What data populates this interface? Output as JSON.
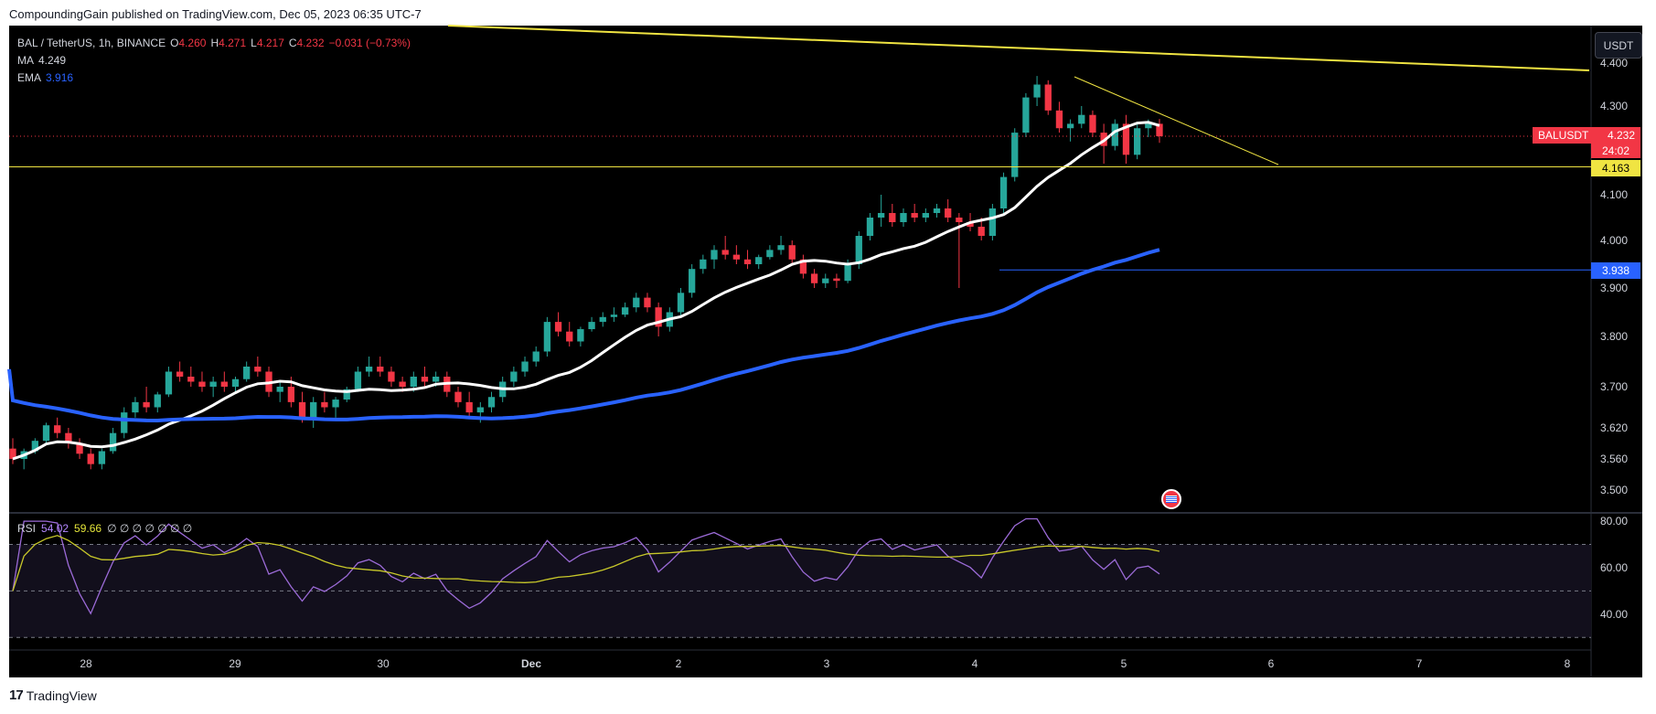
{
  "header_text": "CompoundingGain published on TradingView.com, Dec 05, 2023 06:35 UTC-7",
  "footer_brand": "TradingView",
  "currency_button": "USDT",
  "legend": {
    "symbol": "BAL / TetherUS, 1h, BINANCE",
    "open_label": "O",
    "open": "4.260",
    "high_label": "H",
    "high": "4.271",
    "low_label": "L",
    "low": "4.217",
    "close_label": "C",
    "close": "4.232",
    "change": "−0.031 (−0.73%)",
    "ma_label": "MA",
    "ma_value": "4.249",
    "ema_label": "EMA",
    "ema_value": "3.916"
  },
  "rsi_legend": {
    "label": "RSI",
    "value": "54.02",
    "ma_value": "59.66",
    "extras": "∅ ∅ ∅ ∅ ∅ ∅ ∅"
  },
  "price_tags": {
    "symbol": "BALUSDT",
    "last": "4.232",
    "countdown": "24:02",
    "support": "4.163",
    "level": "3.938"
  },
  "colors": {
    "background": "#000000",
    "up": "#26a69a",
    "down": "#f23645",
    "ma_line": "#ffffff",
    "ema_line": "#2962ff",
    "trend_line": "#f0e442",
    "rsi_line": "#9c6bd8",
    "rsi_ma": "#c9c92a",
    "level_line": "#2962ff"
  },
  "chart_data": [
    {
      "type": "candlestick",
      "title": "BAL / TetherUS, 1h, BINANCE",
      "x_ticks": [
        "28",
        "29",
        "30",
        "Dec",
        "2",
        "3",
        "4",
        "5",
        "6",
        "7",
        "8"
      ],
      "y_ticks": [
        "3.500",
        "3.560",
        "3.620",
        "3.700",
        "3.800",
        "3.900",
        "4.000",
        "4.100",
        "4.300",
        "4.400"
      ],
      "y_scale": "log",
      "ylim": [
        3.47,
        4.42
      ],
      "series": [
        {
          "name": "MA",
          "values_note": "moving average",
          "last": 4.249
        },
        {
          "name": "EMA",
          "last": 3.916
        }
      ],
      "horizontal_levels": [
        4.163,
        3.938
      ],
      "trend_lines": [
        {
          "from": [
            "Nov 27",
            4.46
          ],
          "to": [
            "Dec 8",
            4.37
          ]
        },
        {
          "from": [
            "Dec 4 16:00",
            4.37
          ],
          "to": [
            "Dec 6 01:00",
            4.15
          ]
        }
      ],
      "last_price": 4.232,
      "candles_ohlc": [
        [
          3.58,
          3.6,
          3.55,
          3.56
        ],
        [
          3.56,
          3.58,
          3.54,
          3.575
        ],
        [
          3.575,
          3.6,
          3.57,
          3.595
        ],
        [
          3.595,
          3.63,
          3.59,
          3.625
        ],
        [
          3.625,
          3.64,
          3.6,
          3.61
        ],
        [
          3.61,
          3.62,
          3.58,
          3.59
        ],
        [
          3.59,
          3.6,
          3.56,
          3.57
        ],
        [
          3.57,
          3.58,
          3.54,
          3.55
        ],
        [
          3.55,
          3.58,
          3.54,
          3.575
        ],
        [
          3.575,
          3.62,
          3.57,
          3.61
        ],
        [
          3.61,
          3.66,
          3.6,
          3.65
        ],
        [
          3.65,
          3.68,
          3.64,
          3.67
        ],
        [
          3.67,
          3.7,
          3.65,
          3.66
        ],
        [
          3.66,
          3.69,
          3.65,
          3.685
        ],
        [
          3.685,
          3.74,
          3.68,
          3.73
        ],
        [
          3.73,
          3.75,
          3.71,
          3.72
        ],
        [
          3.72,
          3.74,
          3.7,
          3.71
        ],
        [
          3.71,
          3.73,
          3.69,
          3.7
        ],
        [
          3.7,
          3.72,
          3.68,
          3.71
        ],
        [
          3.71,
          3.73,
          3.69,
          3.7
        ],
        [
          3.7,
          3.72,
          3.69,
          3.715
        ],
        [
          3.715,
          3.75,
          3.71,
          3.74
        ],
        [
          3.74,
          3.76,
          3.72,
          3.73
        ],
        [
          3.73,
          3.74,
          3.68,
          3.69
        ],
        [
          3.69,
          3.71,
          3.67,
          3.7
        ],
        [
          3.7,
          3.72,
          3.66,
          3.67
        ],
        [
          3.67,
          3.69,
          3.63,
          3.64
        ],
        [
          3.64,
          3.68,
          3.62,
          3.67
        ],
        [
          3.67,
          3.69,
          3.65,
          3.66
        ],
        [
          3.66,
          3.68,
          3.64,
          3.675
        ],
        [
          3.675,
          3.7,
          3.67,
          3.695
        ],
        [
          3.695,
          3.74,
          3.69,
          3.73
        ],
        [
          3.73,
          3.76,
          3.72,
          3.74
        ],
        [
          3.74,
          3.76,
          3.72,
          3.73
        ],
        [
          3.73,
          3.74,
          3.7,
          3.71
        ],
        [
          3.71,
          3.72,
          3.69,
          3.7
        ],
        [
          3.7,
          3.73,
          3.69,
          3.72
        ],
        [
          3.72,
          3.74,
          3.7,
          3.71
        ],
        [
          3.71,
          3.73,
          3.7,
          3.72
        ],
        [
          3.72,
          3.73,
          3.68,
          3.69
        ],
        [
          3.69,
          3.7,
          3.66,
          3.67
        ],
        [
          3.67,
          3.69,
          3.64,
          3.65
        ],
        [
          3.65,
          3.67,
          3.63,
          3.66
        ],
        [
          3.66,
          3.69,
          3.65,
          3.68
        ],
        [
          3.68,
          3.72,
          3.67,
          3.71
        ],
        [
          3.71,
          3.74,
          3.7,
          3.73
        ],
        [
          3.73,
          3.76,
          3.72,
          3.75
        ],
        [
          3.75,
          3.78,
          3.74,
          3.77
        ],
        [
          3.77,
          3.84,
          3.76,
          3.83
        ],
        [
          3.83,
          3.85,
          3.8,
          3.81
        ],
        [
          3.81,
          3.83,
          3.78,
          3.79
        ],
        [
          3.79,
          3.82,
          3.78,
          3.815
        ],
        [
          3.815,
          3.84,
          3.81,
          3.83
        ],
        [
          3.83,
          3.85,
          3.82,
          3.84
        ],
        [
          3.84,
          3.86,
          3.83,
          3.845
        ],
        [
          3.845,
          3.87,
          3.84,
          3.86
        ],
        [
          3.86,
          3.89,
          3.85,
          3.88
        ],
        [
          3.88,
          3.89,
          3.85,
          3.86
        ],
        [
          3.86,
          3.87,
          3.8,
          3.82
        ],
        [
          3.82,
          3.86,
          3.81,
          3.85
        ],
        [
          3.85,
          3.9,
          3.84,
          3.89
        ],
        [
          3.89,
          3.95,
          3.88,
          3.94
        ],
        [
          3.94,
          3.97,
          3.93,
          3.96
        ],
        [
          3.96,
          3.99,
          3.94,
          3.98
        ],
        [
          3.98,
          4.01,
          3.96,
          3.97
        ],
        [
          3.97,
          3.99,
          3.95,
          3.96
        ],
        [
          3.96,
          3.98,
          3.94,
          3.95
        ],
        [
          3.95,
          3.97,
          3.94,
          3.965
        ],
        [
          3.965,
          3.99,
          3.96,
          3.98
        ],
        [
          3.98,
          4.01,
          3.97,
          3.99
        ],
        [
          3.99,
          4.0,
          3.95,
          3.96
        ],
        [
          3.96,
          3.97,
          3.92,
          3.93
        ],
        [
          3.93,
          3.94,
          3.9,
          3.91
        ],
        [
          3.91,
          3.93,
          3.9,
          3.92
        ],
        [
          3.92,
          3.93,
          3.9,
          3.915
        ],
        [
          3.915,
          3.96,
          3.91,
          3.95
        ],
        [
          3.95,
          4.02,
          3.94,
          4.01
        ],
        [
          4.01,
          4.06,
          4.0,
          4.05
        ],
        [
          4.05,
          4.1,
          4.03,
          4.06
        ],
        [
          4.06,
          4.08,
          4.03,
          4.04
        ],
        [
          4.04,
          4.07,
          4.03,
          4.06
        ],
        [
          4.06,
          4.08,
          4.04,
          4.05
        ],
        [
          4.05,
          4.07,
          4.04,
          4.06
        ],
        [
          4.06,
          4.08,
          4.05,
          4.07
        ],
        [
          4.07,
          4.09,
          4.04,
          4.05
        ],
        [
          4.05,
          4.06,
          3.9,
          4.04
        ],
        [
          4.04,
          4.06,
          4.02,
          4.03
        ],
        [
          4.03,
          4.05,
          4.0,
          4.01
        ],
        [
          4.01,
          4.08,
          4.0,
          4.07
        ],
        [
          4.07,
          4.15,
          4.06,
          4.14
        ],
        [
          4.14,
          4.25,
          4.13,
          4.24
        ],
        [
          4.24,
          4.33,
          4.23,
          4.32
        ],
        [
          4.32,
          4.37,
          4.3,
          4.35
        ],
        [
          4.35,
          4.36,
          4.28,
          4.29
        ],
        [
          4.29,
          4.31,
          4.24,
          4.25
        ],
        [
          4.25,
          4.27,
          4.22,
          4.26
        ],
        [
          4.26,
          4.3,
          4.25,
          4.28
        ],
        [
          4.28,
          4.29,
          4.23,
          4.24
        ],
        [
          4.24,
          4.26,
          4.17,
          4.21
        ],
        [
          4.21,
          4.27,
          4.2,
          4.26
        ],
        [
          4.26,
          4.28,
          4.17,
          4.19
        ],
        [
          4.19,
          4.26,
          4.18,
          4.25
        ],
        [
          4.25,
          4.27,
          4.23,
          4.26
        ],
        [
          4.26,
          4.271,
          4.217,
          4.232
        ]
      ]
    },
    {
      "type": "line",
      "title": "RSI",
      "y_ticks": [
        "40.00",
        "60.00",
        "80.00"
      ],
      "ylim": [
        25,
        82
      ],
      "bands": [
        30,
        50,
        70
      ],
      "series": [
        {
          "name": "RSI",
          "last": 54.02
        },
        {
          "name": "RSI MA",
          "last": 59.66
        }
      ]
    }
  ]
}
